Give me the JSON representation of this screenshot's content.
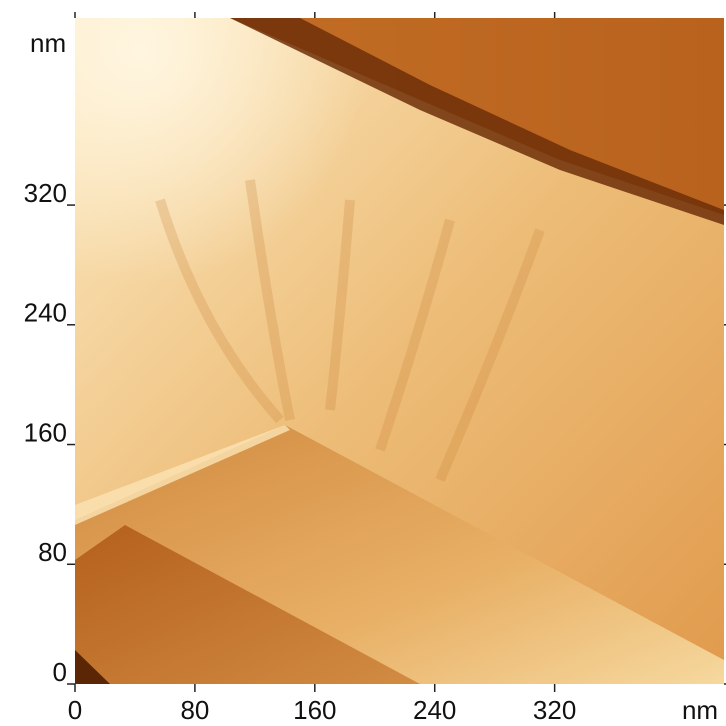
{
  "chart_data": {
    "type": "image",
    "x_label": "nm",
    "y_label": "nm",
    "xlim": [
      0,
      433
    ],
    "ylim": [
      0,
      445
    ],
    "xticks": [
      0,
      80,
      160,
      240,
      320
    ],
    "yticks": [
      0,
      80,
      160,
      240,
      320
    ]
  }
}
